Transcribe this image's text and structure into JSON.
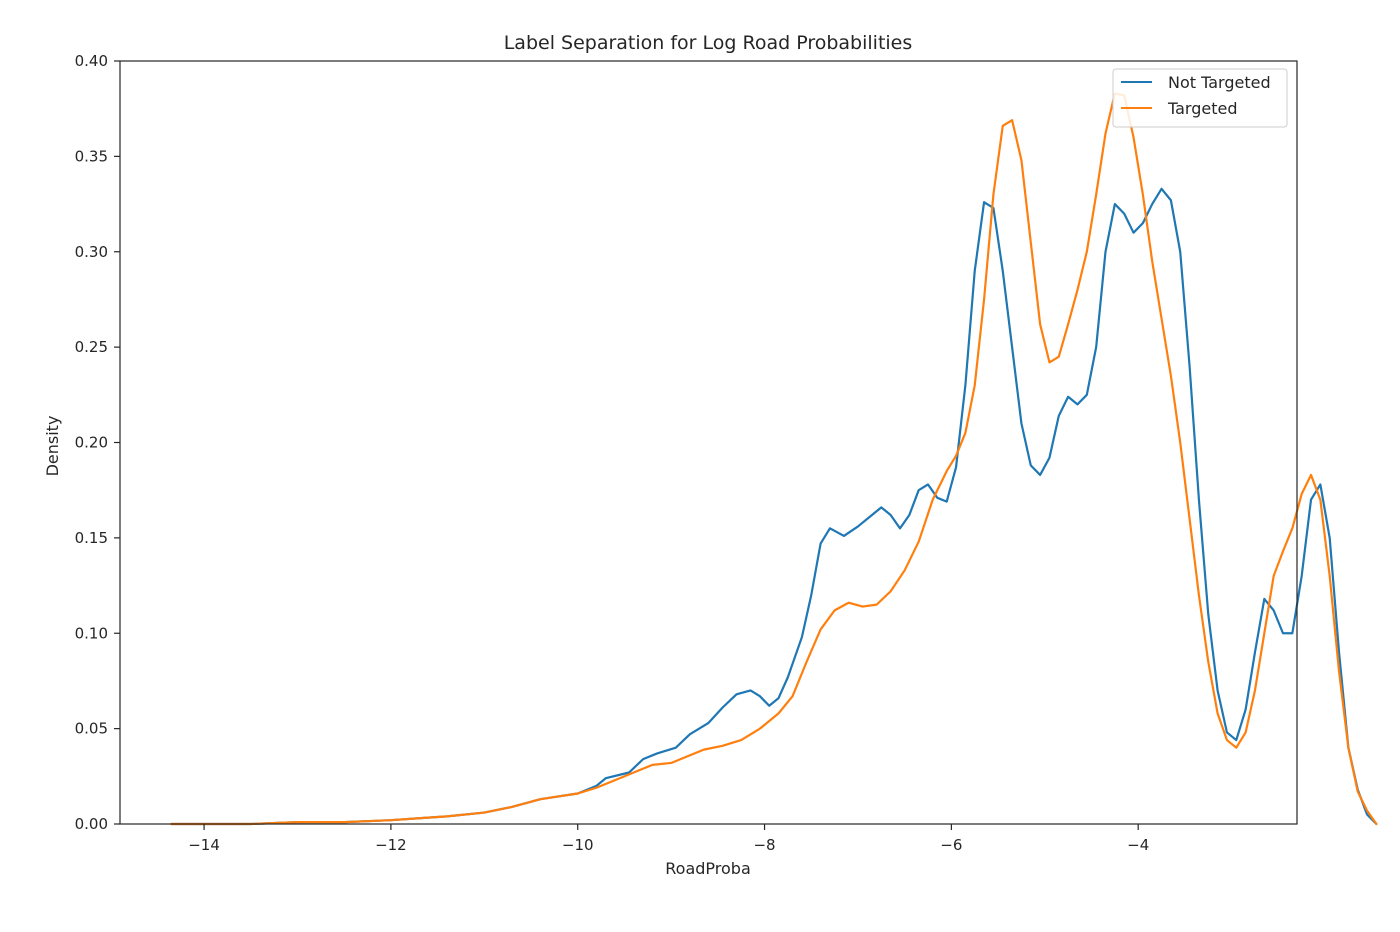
{
  "chart_data": {
    "type": "line",
    "title": "Label Separation for Log Road Probabilities",
    "xlabel": "RoadProba",
    "ylabel": "Density",
    "xlim": [
      -14.9,
      -2.3
    ],
    "ylim": [
      0,
      0.4
    ],
    "x_ticks": [
      -14,
      -12,
      -10,
      -8,
      -6,
      -4
    ],
    "x_tick_labels": [
      "−14",
      "−12",
      "−10",
      "−8",
      "−6",
      "−4"
    ],
    "y_ticks": [
      0,
      0.05,
      0.1,
      0.15,
      0.2,
      0.25,
      0.3,
      0.35,
      0.4
    ],
    "y_tick_labels": [
      "0.00",
      "0.05",
      "0.10",
      "0.15",
      "0.20",
      "0.25",
      "0.30",
      "0.35",
      "0.40"
    ],
    "grid": false,
    "legend_position": "top-right",
    "series": [
      {
        "name": "Not Targeted",
        "color": "#1f77b4",
        "points": [
          [
            -14.35,
            0.0
          ],
          [
            -13.5,
            0.0
          ],
          [
            -13.0,
            0.001
          ],
          [
            -12.5,
            0.001
          ],
          [
            -12.0,
            0.002
          ],
          [
            -11.7,
            0.003
          ],
          [
            -11.4,
            0.004
          ],
          [
            -11.0,
            0.006
          ],
          [
            -10.7,
            0.009
          ],
          [
            -10.4,
            0.013
          ],
          [
            -10.0,
            0.016
          ],
          [
            -9.8,
            0.02
          ],
          [
            -9.7,
            0.024
          ],
          [
            -9.45,
            0.027
          ],
          [
            -9.3,
            0.034
          ],
          [
            -9.15,
            0.037
          ],
          [
            -8.95,
            0.04
          ],
          [
            -8.8,
            0.047
          ],
          [
            -8.6,
            0.053
          ],
          [
            -8.45,
            0.061
          ],
          [
            -8.3,
            0.068
          ],
          [
            -8.15,
            0.07
          ],
          [
            -8.05,
            0.067
          ],
          [
            -7.95,
            0.062
          ],
          [
            -7.85,
            0.066
          ],
          [
            -7.75,
            0.077
          ],
          [
            -7.6,
            0.098
          ],
          [
            -7.5,
            0.12
          ],
          [
            -7.4,
            0.147
          ],
          [
            -7.3,
            0.155
          ],
          [
            -7.15,
            0.151
          ],
          [
            -7.0,
            0.156
          ],
          [
            -6.85,
            0.162
          ],
          [
            -6.75,
            0.166
          ],
          [
            -6.65,
            0.162
          ],
          [
            -6.55,
            0.155
          ],
          [
            -6.45,
            0.162
          ],
          [
            -6.35,
            0.175
          ],
          [
            -6.25,
            0.178
          ],
          [
            -6.15,
            0.171
          ],
          [
            -6.05,
            0.169
          ],
          [
            -5.95,
            0.187
          ],
          [
            -5.85,
            0.23
          ],
          [
            -5.75,
            0.29
          ],
          [
            -5.65,
            0.326
          ],
          [
            -5.55,
            0.323
          ],
          [
            -5.45,
            0.29
          ],
          [
            -5.35,
            0.25
          ],
          [
            -5.25,
            0.21
          ],
          [
            -5.15,
            0.188
          ],
          [
            -5.05,
            0.183
          ],
          [
            -4.95,
            0.192
          ],
          [
            -4.85,
            0.214
          ],
          [
            -4.75,
            0.224
          ],
          [
            -4.65,
            0.22
          ],
          [
            -4.55,
            0.225
          ],
          [
            -4.45,
            0.25
          ],
          [
            -4.35,
            0.3
          ],
          [
            -4.25,
            0.325
          ],
          [
            -4.15,
            0.32
          ],
          [
            -4.05,
            0.31
          ],
          [
            -3.95,
            0.315
          ],
          [
            -3.85,
            0.325
          ],
          [
            -3.75,
            0.333
          ],
          [
            -3.65,
            0.327
          ],
          [
            -3.55,
            0.3
          ],
          [
            -3.45,
            0.24
          ],
          [
            -3.35,
            0.17
          ],
          [
            -3.25,
            0.11
          ],
          [
            -3.15,
            0.07
          ],
          [
            -3.05,
            0.048
          ],
          [
            -2.95,
            0.044
          ],
          [
            -2.85,
            0.06
          ],
          [
            -2.75,
            0.09
          ],
          [
            -2.65,
            0.118
          ],
          [
            -2.55,
            0.112
          ],
          [
            -2.45,
            0.1
          ],
          [
            -2.35,
            0.1
          ],
          [
            -2.25,
            0.13
          ],
          [
            -2.15,
            0.17
          ],
          [
            -2.05,
            0.178
          ],
          [
            -1.95,
            0.15
          ],
          [
            -1.85,
            0.09
          ],
          [
            -1.75,
            0.04
          ],
          [
            -1.65,
            0.018
          ],
          [
            -1.55,
            0.005
          ],
          [
            -1.45,
            0.0
          ]
        ]
      },
      {
        "name": "Targeted",
        "color": "#ff7f0e",
        "points": [
          [
            -14.35,
            0.0
          ],
          [
            -13.5,
            0.0
          ],
          [
            -13.0,
            0.001
          ],
          [
            -12.5,
            0.001
          ],
          [
            -12.0,
            0.002
          ],
          [
            -11.7,
            0.003
          ],
          [
            -11.4,
            0.004
          ],
          [
            -11.0,
            0.006
          ],
          [
            -10.7,
            0.009
          ],
          [
            -10.4,
            0.013
          ],
          [
            -10.0,
            0.016
          ],
          [
            -9.8,
            0.019
          ],
          [
            -9.6,
            0.023
          ],
          [
            -9.4,
            0.027
          ],
          [
            -9.2,
            0.031
          ],
          [
            -9.0,
            0.032
          ],
          [
            -8.85,
            0.035
          ],
          [
            -8.65,
            0.039
          ],
          [
            -8.45,
            0.041
          ],
          [
            -8.25,
            0.044
          ],
          [
            -8.05,
            0.05
          ],
          [
            -7.85,
            0.058
          ],
          [
            -7.7,
            0.067
          ],
          [
            -7.55,
            0.085
          ],
          [
            -7.4,
            0.102
          ],
          [
            -7.25,
            0.112
          ],
          [
            -7.1,
            0.116
          ],
          [
            -6.95,
            0.114
          ],
          [
            -6.8,
            0.115
          ],
          [
            -6.65,
            0.122
          ],
          [
            -6.5,
            0.133
          ],
          [
            -6.35,
            0.148
          ],
          [
            -6.2,
            0.17
          ],
          [
            -6.05,
            0.185
          ],
          [
            -5.95,
            0.193
          ],
          [
            -5.85,
            0.205
          ],
          [
            -5.75,
            0.23
          ],
          [
            -5.65,
            0.275
          ],
          [
            -5.55,
            0.33
          ],
          [
            -5.45,
            0.366
          ],
          [
            -5.35,
            0.369
          ],
          [
            -5.25,
            0.348
          ],
          [
            -5.15,
            0.305
          ],
          [
            -5.05,
            0.262
          ],
          [
            -4.95,
            0.242
          ],
          [
            -4.85,
            0.245
          ],
          [
            -4.75,
            0.262
          ],
          [
            -4.65,
            0.28
          ],
          [
            -4.55,
            0.3
          ],
          [
            -4.45,
            0.33
          ],
          [
            -4.35,
            0.362
          ],
          [
            -4.25,
            0.383
          ],
          [
            -4.15,
            0.382
          ],
          [
            -4.05,
            0.36
          ],
          [
            -3.95,
            0.33
          ],
          [
            -3.85,
            0.295
          ],
          [
            -3.75,
            0.265
          ],
          [
            -3.65,
            0.235
          ],
          [
            -3.55,
            0.2
          ],
          [
            -3.45,
            0.16
          ],
          [
            -3.35,
            0.12
          ],
          [
            -3.25,
            0.085
          ],
          [
            -3.15,
            0.058
          ],
          [
            -3.05,
            0.044
          ],
          [
            -2.95,
            0.04
          ],
          [
            -2.85,
            0.048
          ],
          [
            -2.75,
            0.07
          ],
          [
            -2.65,
            0.1
          ],
          [
            -2.55,
            0.13
          ],
          [
            -2.45,
            0.143
          ],
          [
            -2.35,
            0.155
          ],
          [
            -2.25,
            0.173
          ],
          [
            -2.15,
            0.183
          ],
          [
            -2.05,
            0.17
          ],
          [
            -1.95,
            0.13
          ],
          [
            -1.85,
            0.08
          ],
          [
            -1.75,
            0.04
          ],
          [
            -1.65,
            0.017
          ],
          [
            -1.55,
            0.007
          ],
          [
            -1.45,
            0.0
          ]
        ]
      }
    ]
  }
}
